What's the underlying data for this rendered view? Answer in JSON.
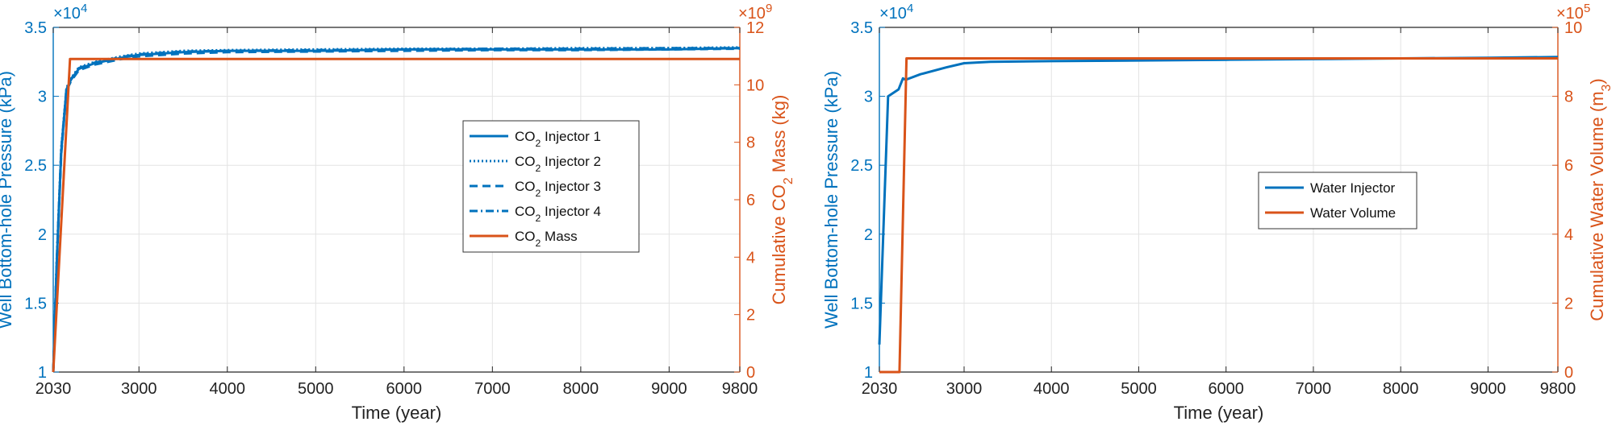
{
  "chart_data": [
    {
      "type": "line",
      "xlabel": "Time (year)",
      "ylabel_left": "Well Bottom-hole Pressure (kPa)",
      "ylabel_right_parts": [
        "Cumulative CO",
        "2",
        " Mass (kg)"
      ],
      "x_ticks": [
        "2030",
        "3000",
        "4000",
        "5000",
        "6000",
        "7000",
        "8000",
        "9000",
        "9800"
      ],
      "xlim": [
        2030,
        9800
      ],
      "left_ticks": [
        "1",
        "1.5",
        "2",
        "2.5",
        "3",
        "3.5"
      ],
      "left_ylim": [
        1,
        3.5
      ],
      "left_exponent": {
        "base": "×10",
        "power": "4"
      },
      "right_ticks": [
        "0",
        "2",
        "4",
        "6",
        "8",
        "10",
        "12"
      ],
      "right_ylim": [
        0,
        12
      ],
      "right_exponent": {
        "base": "×10",
        "power": "9"
      },
      "series": [
        {
          "name": "CO2 Injector 1",
          "axis": "left",
          "style": "solid",
          "x": [
            2030,
            2070,
            2120,
            2180,
            2230,
            2320,
            2500,
            2800,
            3000,
            3500,
            4000,
            5000,
            6000,
            7000,
            8000,
            9000,
            9800
          ],
          "y": [
            1.0,
            1.8,
            2.6,
            3.05,
            3.12,
            3.2,
            3.24,
            3.28,
            3.3,
            3.32,
            3.33,
            3.33,
            3.34,
            3.34,
            3.34,
            3.34,
            3.35
          ]
        },
        {
          "name": "CO2 Injector 2",
          "axis": "left",
          "style": "dotted",
          "x": [
            2030,
            2070,
            2120,
            2180,
            2230,
            2320,
            2500,
            2800,
            3000,
            3500,
            4000,
            5000,
            6000,
            7000,
            8000,
            9000,
            9800
          ],
          "y": [
            1.0,
            1.82,
            2.62,
            3.06,
            3.13,
            3.21,
            3.25,
            3.29,
            3.31,
            3.33,
            3.335,
            3.34,
            3.345,
            3.345,
            3.35,
            3.35,
            3.355
          ]
        },
        {
          "name": "CO2 Injector 3",
          "axis": "left",
          "style": "dashed",
          "x": [
            2030,
            2070,
            2120,
            2180,
            2230,
            2320,
            2500,
            2800,
            3000,
            3500,
            4000,
            5000,
            6000,
            7000,
            8000,
            9000,
            9800
          ],
          "y": [
            1.0,
            1.79,
            2.58,
            3.04,
            3.11,
            3.19,
            3.23,
            3.27,
            3.29,
            3.31,
            3.32,
            3.325,
            3.33,
            3.335,
            3.335,
            3.34,
            3.345
          ]
        },
        {
          "name": "CO2 Injector 4",
          "axis": "left",
          "style": "dashdot",
          "x": [
            2030,
            2070,
            2120,
            2180,
            2230,
            2320,
            2500,
            2800,
            3000,
            3500,
            4000,
            5000,
            6000,
            7000,
            8000,
            9000,
            9800
          ],
          "y": [
            1.0,
            1.81,
            2.61,
            3.05,
            3.125,
            3.205,
            3.245,
            3.285,
            3.305,
            3.325,
            3.33,
            3.335,
            3.34,
            3.345,
            3.345,
            3.35,
            3.35
          ]
        },
        {
          "name": "CO2 Mass",
          "axis": "right",
          "style": "solid",
          "x": [
            2030,
            2220,
            9800
          ],
          "y": [
            0,
            10.9,
            10.9
          ]
        }
      ],
      "legend": [
        {
          "series": 0,
          "label_parts": [
            "CO",
            "2",
            " Injector 1"
          ]
        },
        {
          "series": 1,
          "label_parts": [
            "CO",
            "2",
            " Injector 2"
          ]
        },
        {
          "series": 2,
          "label_parts": [
            "CO",
            "2",
            " Injector 3"
          ]
        },
        {
          "series": 3,
          "label_parts": [
            "CO",
            "2",
            " Injector 4"
          ]
        },
        {
          "series": 4,
          "label_parts": [
            "CO",
            "2",
            " Mass"
          ]
        }
      ],
      "legend_location": "center-right",
      "grid": true
    },
    {
      "type": "line",
      "xlabel": "Time (year)",
      "ylabel_left": "Well Bottom-hole Pressure (kPa)",
      "ylabel_right_parts": [
        "Cumulative Water Volume (m",
        "3",
        ")"
      ],
      "x_ticks": [
        "2030",
        "3000",
        "4000",
        "5000",
        "6000",
        "7000",
        "8000",
        "9000",
        "9800"
      ],
      "xlim": [
        2030,
        9800
      ],
      "left_ticks": [
        "1",
        "1.5",
        "2",
        "2.5",
        "3",
        "3.5"
      ],
      "left_ylim": [
        1,
        3.5
      ],
      "left_exponent": {
        "base": "×10",
        "power": "4"
      },
      "right_ticks": [
        "0",
        "2",
        "4",
        "6",
        "8",
        "10"
      ],
      "right_ylim": [
        0,
        10
      ],
      "right_exponent": {
        "base": "×10",
        "power": "5"
      },
      "series": [
        {
          "name": "Water Injector",
          "axis": "left",
          "style": "solid",
          "x": [
            2030,
            2130,
            2250,
            2300,
            2330,
            2500,
            2800,
            3000,
            3300,
            4000,
            5000,
            6000,
            7000,
            8000,
            9000,
            9800
          ],
          "y": [
            1.2,
            3.0,
            3.05,
            3.13,
            3.12,
            3.16,
            3.21,
            3.24,
            3.25,
            3.255,
            3.26,
            3.265,
            3.27,
            3.275,
            3.28,
            3.285
          ]
        },
        {
          "name": "Water Volume",
          "axis": "right",
          "style": "solid",
          "x": [
            2030,
            2260,
            2340,
            9800
          ],
          "y": [
            0,
            0,
            9.1,
            9.1
          ]
        }
      ],
      "legend": [
        {
          "series": 0,
          "label_parts": [
            "Water Injector"
          ]
        },
        {
          "series": 1,
          "label_parts": [
            "Water Volume"
          ]
        }
      ],
      "legend_location": "center-right",
      "grid": true
    }
  ],
  "colors": {
    "left_axis": "#0072BD",
    "right_axis": "#D95319",
    "grid": "#e3e3e3",
    "axes": "#262626"
  }
}
